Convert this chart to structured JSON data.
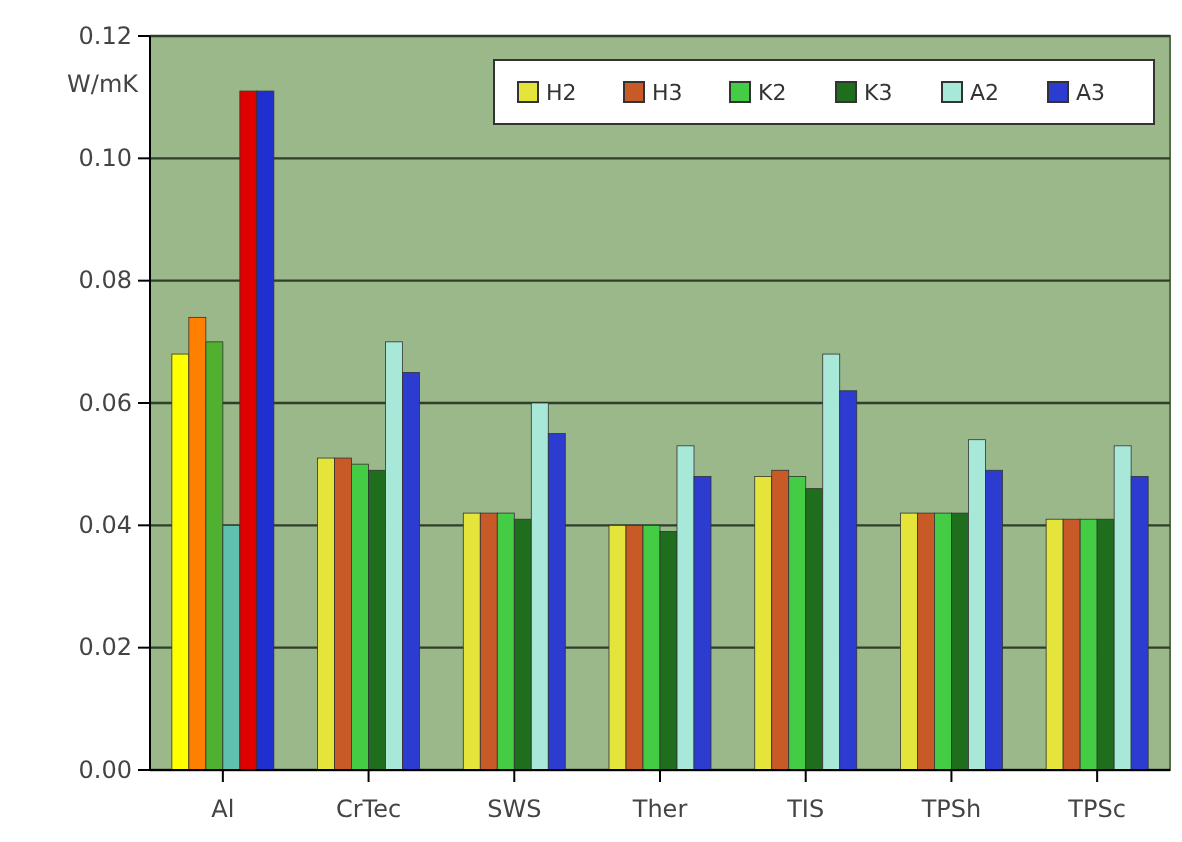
{
  "chart_data": {
    "type": "bar",
    "ylabel": "W/mK",
    "categories": [
      "Al",
      "CrTec",
      "SWS",
      "Ther",
      "TIS",
      "TPSh",
      "TPSc"
    ],
    "series": [
      {
        "name": "H2",
        "color": "#e4e43a",
        "colors": [
          "#ffff00",
          "#e4e43a",
          "#e4e43a",
          "#e4e43a",
          "#e4e43a",
          "#e4e43a",
          "#e4e43a"
        ],
        "values": [
          0.068,
          0.051,
          0.042,
          0.04,
          0.048,
          0.042,
          0.041
        ]
      },
      {
        "name": "H3",
        "color": "#c85a28",
        "colors": [
          "#ff8000",
          "#c85a28",
          "#c85a28",
          "#c85a28",
          "#c85a28",
          "#c85a28",
          "#c85a28"
        ],
        "values": [
          0.074,
          0.051,
          0.042,
          0.04,
          0.049,
          0.042,
          0.041
        ]
      },
      {
        "name": "K2",
        "color": "#44cc44",
        "colors": [
          "#50b030",
          "#44cc44",
          "#44cc44",
          "#44cc44",
          "#44cc44",
          "#44cc44",
          "#44cc44"
        ],
        "values": [
          0.07,
          0.05,
          0.042,
          0.04,
          0.048,
          0.042,
          0.041
        ]
      },
      {
        "name": "K3",
        "color": "#1e6e1e",
        "colors": [
          "#60c0b0",
          "#1e6e1e",
          "#1e6e1e",
          "#1e6e1e",
          "#1e6e1e",
          "#1e6e1e",
          "#1e6e1e"
        ],
        "values": [
          0.04,
          0.049,
          0.041,
          0.039,
          0.046,
          0.042,
          0.041
        ]
      },
      {
        "name": "A2",
        "color": "#a8e8d8",
        "colors": [
          "#e00000",
          "#a8e8d8",
          "#a8e8d8",
          "#a8e8d8",
          "#a8e8d8",
          "#a8e8d8",
          "#a8e8d8"
        ],
        "values": [
          0.111,
          0.07,
          0.06,
          0.053,
          0.068,
          0.054,
          0.053
        ]
      },
      {
        "name": "A3",
        "color": "#2c3cd0",
        "colors": [
          "#2030d0",
          "#2c3cd0",
          "#2c3cd0",
          "#2c3cd0",
          "#2c3cd0",
          "#2c3cd0",
          "#2c3cd0"
        ],
        "values": [
          0.111,
          0.065,
          0.055,
          0.048,
          0.062,
          0.049,
          0.048
        ]
      }
    ],
    "ylim": [
      0,
      0.12
    ],
    "yticks": [
      {
        "value": 0,
        "label": "0.00"
      },
      {
        "value": 0.02,
        "label": "0.02"
      },
      {
        "value": 0.04,
        "label": "0.04"
      },
      {
        "value": 0.06,
        "label": "0.06"
      },
      {
        "value": 0.08,
        "label": "0.08"
      },
      {
        "value": 0.1,
        "label": "0.10"
      },
      {
        "value": 0.12,
        "label": "0.12"
      }
    ],
    "grid": "y",
    "legend": "top right"
  }
}
